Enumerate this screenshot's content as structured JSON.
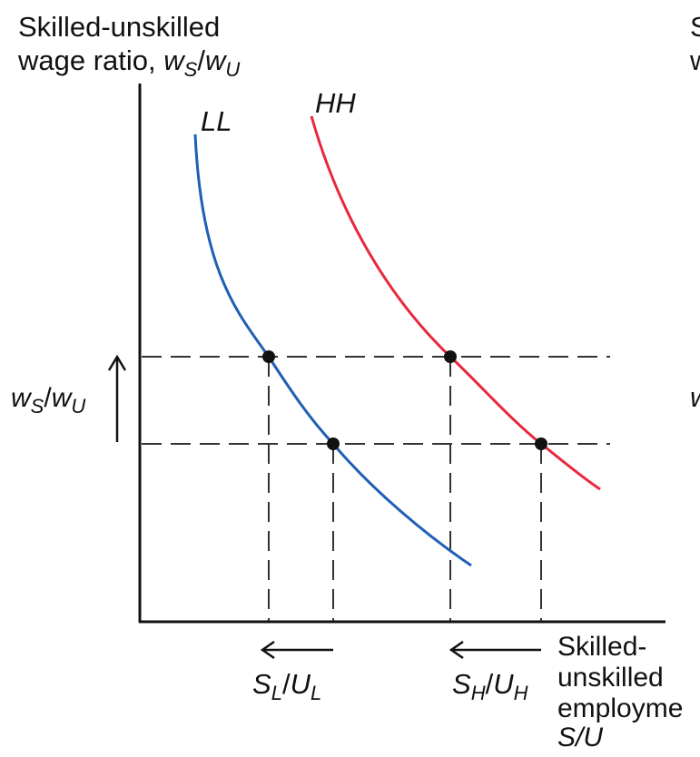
{
  "y_axis_label": {
    "line1": "Skilled-unskilled",
    "line2_prefix": "wage ratio, ",
    "var_w1": "w",
    "var_s": "S",
    "slash": "/",
    "var_w2": "w",
    "var_u": "U"
  },
  "right_panel_clipped": {
    "top_chars": [
      "S",
      "w"
    ],
    "mid_char": "w"
  },
  "curves": {
    "ll_label": "LL",
    "hh_label": "HH",
    "ll_color": "#1f5fb4",
    "hh_color": "#e8283c"
  },
  "wage_shift_label": {
    "w1": "w",
    "s": "S",
    "slash": "/",
    "w2": "w",
    "u": "U"
  },
  "x_tick_labels": {
    "sl_ul": {
      "s": "S",
      "ls": "L",
      "slash": "/",
      "u": "U",
      "lu": "L"
    },
    "sh_uh": {
      "s": "S",
      "hs": "H",
      "slash": "/",
      "u": "U",
      "hu": "H"
    }
  },
  "x_axis_label": {
    "line1": "Skilled-",
    "line2": "unskilled",
    "line3": "employme",
    "line4": "S/U"
  },
  "colors": {
    "axis": "#111111",
    "dashes": "#333333",
    "points": "#111111"
  }
}
